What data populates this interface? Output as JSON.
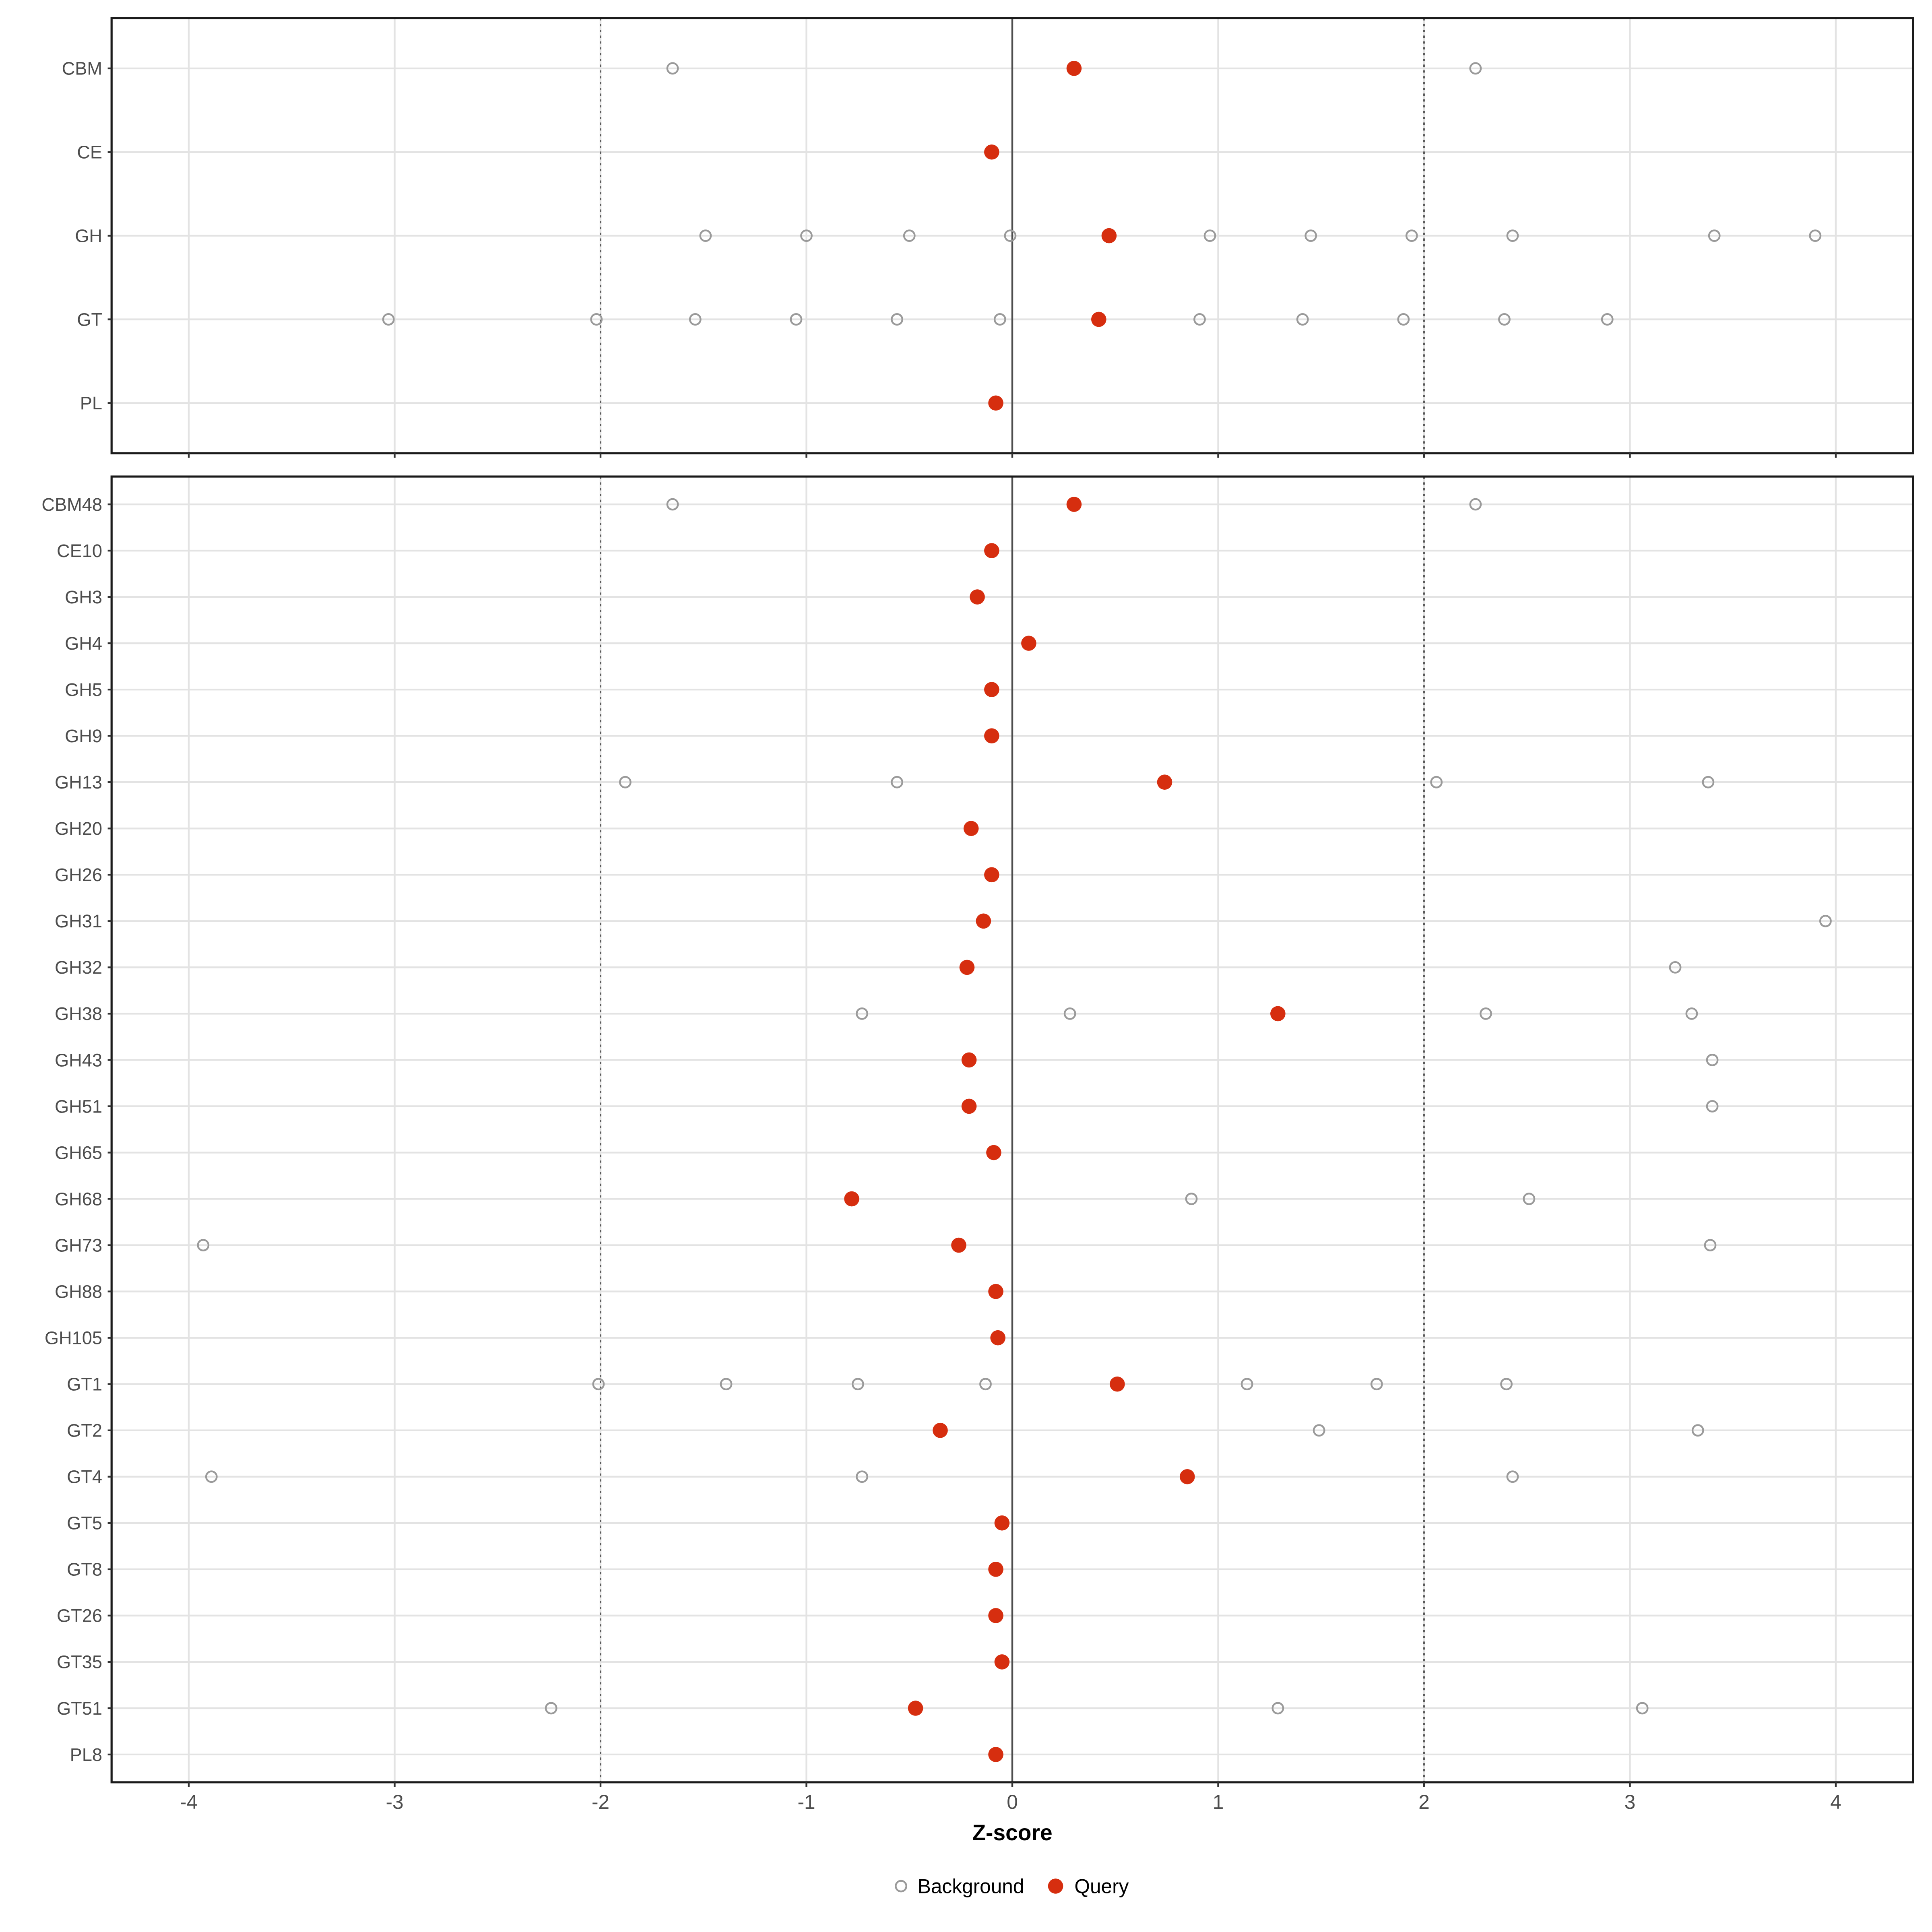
{
  "chart_data": {
    "type": "scatter",
    "variant": "dot-plot-two-panels",
    "xlabel": "Z-score",
    "x_ticks": [
      "-4",
      "-3",
      "-2",
      "-1",
      "0",
      "1",
      "2",
      "3",
      "4"
    ],
    "x_tick_values": [
      -4,
      -3,
      -2,
      -1,
      0,
      1,
      2,
      3,
      4
    ],
    "x_range": [
      -4.375,
      4.375
    ],
    "grid": true,
    "reference_lines": {
      "solid": [
        0
      ],
      "dotted": [
        -2,
        2
      ]
    },
    "legend": {
      "position": "bottom-center",
      "items": [
        {
          "label": "Background",
          "marker": "open-circle"
        },
        {
          "label": "Query",
          "marker": "filled-circle"
        }
      ]
    },
    "colors": {
      "query": "#D62E0F",
      "background_stroke": "#9A9A9A",
      "gridline": "#E3E3E3",
      "panel_border": "#1A1A1A",
      "zero_line": "#4D4D4D",
      "dashed_line": "#5A5A5A",
      "axis_text": "#4D4D4D",
      "axis_title": "#000000",
      "tick_mark": "#333333",
      "legend_text": "#000000"
    },
    "panels": [
      {
        "name": "families",
        "rows": [
          {
            "label": "CBM",
            "background": [
              -1.65,
              2.25
            ],
            "query": [
              0.3
            ]
          },
          {
            "label": "CE",
            "background": [],
            "query": [
              -0.1
            ]
          },
          {
            "label": "GH",
            "background": [
              -1.49,
              -1.0,
              -0.5,
              -0.01,
              0.96,
              1.45,
              1.94,
              2.43,
              3.41,
              3.9
            ],
            "query": [
              0.47
            ]
          },
          {
            "label": "GT",
            "background": [
              -3.03,
              -2.02,
              -1.54,
              -1.05,
              -0.56,
              -0.06,
              0.91,
              1.41,
              1.9,
              2.39,
              2.89
            ],
            "query": [
              0.42
            ]
          },
          {
            "label": "PL",
            "background": [],
            "query": [
              -0.08
            ]
          }
        ]
      },
      {
        "name": "subfamilies",
        "rows": [
          {
            "label": "CBM48",
            "background": [
              -1.65,
              2.25
            ],
            "query": [
              0.3
            ]
          },
          {
            "label": "CE10",
            "background": [],
            "query": [
              -0.1
            ]
          },
          {
            "label": "GH3",
            "background": [],
            "query": [
              -0.17
            ]
          },
          {
            "label": "GH4",
            "background": [],
            "query": [
              0.08
            ]
          },
          {
            "label": "GH5",
            "background": [],
            "query": [
              -0.1
            ]
          },
          {
            "label": "GH9",
            "background": [],
            "query": [
              -0.1
            ]
          },
          {
            "label": "GH13",
            "background": [
              -1.88,
              -0.56,
              2.06,
              3.38
            ],
            "query": [
              0.74
            ]
          },
          {
            "label": "GH20",
            "background": [],
            "query": [
              -0.2
            ]
          },
          {
            "label": "GH26",
            "background": [],
            "query": [
              -0.1
            ]
          },
          {
            "label": "GH31",
            "background": [
              3.95
            ],
            "query": [
              -0.14
            ]
          },
          {
            "label": "GH32",
            "background": [
              3.22
            ],
            "query": [
              -0.22
            ]
          },
          {
            "label": "GH38",
            "background": [
              -0.73,
              0.28,
              2.3,
              3.3
            ],
            "query": [
              1.29
            ]
          },
          {
            "label": "GH43",
            "background": [
              3.4
            ],
            "query": [
              -0.21
            ]
          },
          {
            "label": "GH51",
            "background": [
              3.4
            ],
            "query": [
              -0.21
            ]
          },
          {
            "label": "GH65",
            "background": [],
            "query": [
              -0.09
            ]
          },
          {
            "label": "GH68",
            "background": [
              0.87,
              2.51
            ],
            "query": [
              -0.78
            ]
          },
          {
            "label": "GH73",
            "background": [
              -3.93,
              3.39
            ],
            "query": [
              -0.26
            ]
          },
          {
            "label": "GH88",
            "background": [],
            "query": [
              -0.08
            ]
          },
          {
            "label": "GH105",
            "background": [],
            "query": [
              -0.07
            ]
          },
          {
            "label": "GT1",
            "background": [
              -2.01,
              -1.39,
              -0.75,
              -0.13,
              1.14,
              1.77,
              2.4
            ],
            "query": [
              0.51
            ]
          },
          {
            "label": "GT2",
            "background": [
              1.49,
              3.33
            ],
            "query": [
              -0.35
            ]
          },
          {
            "label": "GT4",
            "background": [
              -3.89,
              -0.73,
              2.43
            ],
            "query": [
              0.85
            ]
          },
          {
            "label": "GT5",
            "background": [],
            "query": [
              -0.05
            ]
          },
          {
            "label": "GT8",
            "background": [],
            "query": [
              -0.08
            ]
          },
          {
            "label": "GT26",
            "background": [],
            "query": [
              -0.08
            ]
          },
          {
            "label": "GT35",
            "background": [],
            "query": [
              -0.05
            ]
          },
          {
            "label": "GT51",
            "background": [
              -2.24,
              1.29,
              3.06
            ],
            "query": [
              -0.47
            ]
          },
          {
            "label": "PL8",
            "background": [],
            "query": [
              -0.08
            ]
          }
        ]
      }
    ]
  }
}
